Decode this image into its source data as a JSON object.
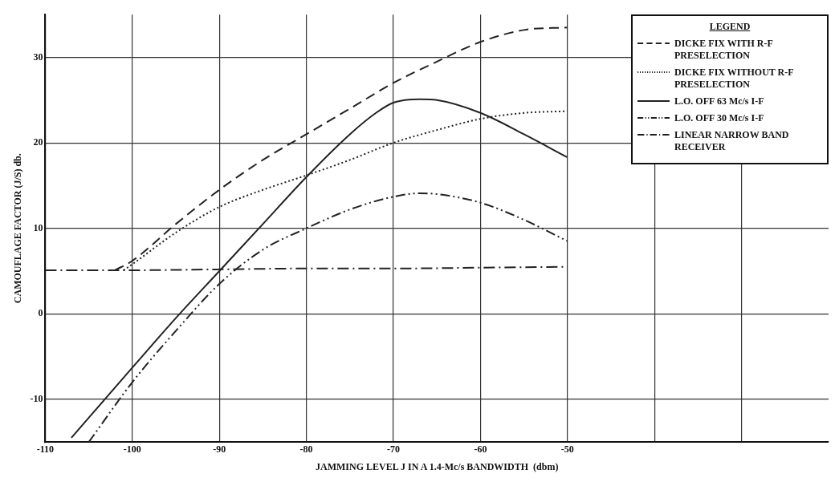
{
  "chart_data": {
    "type": "line",
    "xlabel": "JAMMING LEVEL J IN A 1.4-Mc/s BANDWIDTH  (dbm)",
    "ylabel": "CAMOUFLAGE FACTOR (J/S) db.",
    "legend_title": "LEGEND",
    "xlim": [
      -110,
      -20
    ],
    "xticks": [
      -110,
      -100,
      -90,
      -80,
      -70,
      -60,
      -50,
      {
        "value": -40,
        "label": null
      },
      {
        "value": -30,
        "label": null
      }
    ],
    "ylim": [
      -15,
      35
    ],
    "yticks": [
      -10,
      0,
      10,
      20,
      30
    ],
    "grid": true,
    "legend": "top right",
    "marker": "none",
    "series": [
      {
        "name": "DICKE FIX WITH R-F PRESELECTION",
        "color": "#222222",
        "line_style": "dashed",
        "x": [
          -102,
          -100,
          -95,
          -90,
          -85,
          -80,
          -75,
          -70,
          -65,
          -60,
          -55,
          -50
        ],
        "values": [
          5.1,
          6.2,
          10.5,
          14.5,
          18,
          21,
          24,
          27,
          29.5,
          31.8,
          33.2,
          33.5
        ]
      },
      {
        "name": "DICKE FIX WITHOUT R-F PRESELECTION",
        "color": "#222222",
        "line_style": "dotted",
        "x": [
          -101,
          -100,
          -95,
          -90,
          -85,
          -80,
          -75,
          -70,
          -65,
          -60,
          -55,
          -50
        ],
        "values": [
          5.1,
          5.8,
          9.5,
          12.5,
          14.5,
          16.2,
          18,
          20,
          21.5,
          22.8,
          23.5,
          23.7
        ]
      },
      {
        "name": "L.O. OFF 63 Mc/s I-F",
        "color": "#222222",
        "line_style": "solid",
        "x": [
          -107,
          -100,
          -95,
          -90,
          -85,
          -80,
          -75,
          -72,
          -70,
          -67,
          -65,
          -60,
          -55,
          -50
        ],
        "values": [
          -14.5,
          -6.3,
          -0.5,
          5,
          10.5,
          16,
          21,
          23.5,
          24.7,
          25.1,
          25,
          23.5,
          21,
          18.3
        ]
      },
      {
        "name": "L.O. OFF 30 Mc/s I-F",
        "color": "#222222",
        "line_style": "dashdotdot",
        "x": [
          -105,
          -100,
          -95,
          -90,
          -85,
          -80,
          -75,
          -70,
          -67,
          -65,
          -60,
          -55,
          -50
        ],
        "values": [
          -15,
          -8,
          -2,
          3.5,
          7.5,
          10,
          12.2,
          13.7,
          14.1,
          14,
          13,
          11,
          8.5
        ]
      },
      {
        "name": "LINEAR NARROW BAND RECEIVER",
        "color": "#222222",
        "line_style": "dashdot",
        "x": [
          -110,
          -100,
          -90,
          -80,
          -70,
          -60,
          -50
        ],
        "values": [
          5.1,
          5.1,
          5.2,
          5.3,
          5.3,
          5.4,
          5.5
        ]
      }
    ]
  }
}
